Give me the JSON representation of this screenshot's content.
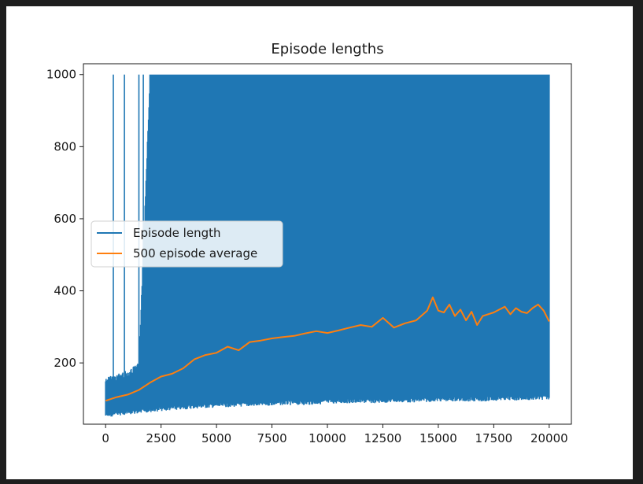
{
  "chart_data": {
    "type": "line",
    "title": "Episode lengths",
    "xlabel": "",
    "ylabel": "",
    "xlim": [
      -1000,
      21000
    ],
    "ylim": [
      30,
      1030
    ],
    "xticks": [
      0,
      2500,
      5000,
      7500,
      10000,
      12500,
      15000,
      17500,
      20000
    ],
    "yticks": [
      200,
      400,
      600,
      800,
      1000
    ],
    "legend_position": "center-left",
    "grid": false,
    "series": [
      {
        "name": "Episode length",
        "color": "#1f77b4",
        "kind": "per-episode (dense)",
        "band_x": [
          0,
          500,
          1000,
          1500,
          2000,
          2500,
          3000,
          3500,
          4000,
          5000,
          6000,
          7000,
          8000,
          9000,
          10000,
          11000,
          12000,
          13000,
          14000,
          15000,
          16000,
          17000,
          18000,
          19000,
          20000
        ],
        "band_low": [
          60,
          65,
          68,
          70,
          75,
          78,
          80,
          82,
          85,
          88,
          90,
          92,
          95,
          95,
          98,
          100,
          100,
          102,
          102,
          105,
          105,
          105,
          108,
          108,
          110
        ],
        "band_high": [
          160,
          170,
          180,
          200,
          1000,
          1000,
          1000,
          1000,
          1000,
          1000,
          1000,
          1000,
          1000,
          1000,
          1000,
          1000,
          1000,
          1000,
          1000,
          1000,
          1000,
          1000,
          1000,
          1000,
          1000
        ],
        "spikes_to_1000_at": [
          350,
          850,
          1500,
          1700,
          2400,
          2700,
          3200
        ]
      },
      {
        "name": "500 episode average",
        "color": "#ff7f0e",
        "x": [
          0,
          500,
          1000,
          1500,
          2000,
          2500,
          3000,
          3500,
          4000,
          4500,
          5000,
          5500,
          6000,
          6500,
          7000,
          7500,
          8000,
          8500,
          9000,
          9500,
          10000,
          10500,
          11000,
          11500,
          12000,
          12500,
          13000,
          13500,
          14000,
          14500,
          14750,
          15000,
          15250,
          15500,
          15750,
          16000,
          16250,
          16500,
          16750,
          17000,
          17500,
          18000,
          18250,
          18500,
          18750,
          19000,
          19250,
          19500,
          19750,
          20000
        ],
        "y": [
          95,
          105,
          112,
          125,
          145,
          162,
          170,
          185,
          210,
          222,
          228,
          245,
          235,
          258,
          262,
          268,
          272,
          275,
          282,
          288,
          283,
          290,
          298,
          305,
          300,
          325,
          298,
          310,
          318,
          345,
          382,
          345,
          340,
          362,
          330,
          348,
          318,
          342,
          305,
          330,
          340,
          356,
          335,
          352,
          342,
          338,
          352,
          362,
          345,
          315
        ]
      }
    ]
  }
}
